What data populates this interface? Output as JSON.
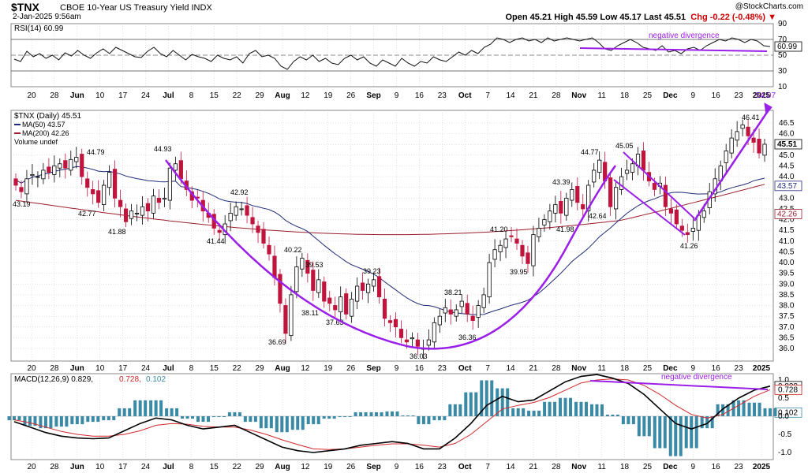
{
  "header": {
    "symbol": "$TNX",
    "description": "CBOE 10-Year US Treasury Yield INDX",
    "date": "2-Jan-2025 9:56am",
    "quote": "Open 45.21  High 45.59  Low 45.17  Last 45.51",
    "change": "Chg -0.22 (-0.48%)",
    "change_arrow": "▼",
    "logo": "@StockCharts.com"
  },
  "colors": {
    "up": "#000000",
    "down": "#c0143c",
    "ma50": "#1e2a78",
    "ma200": "#9a1e2e",
    "trend": "#9b1fe8",
    "macd": "#000000",
    "signal": "#d0282a",
    "histogram": "#3a8aa6",
    "grid": "#c8c8c8"
  },
  "chart_data": [
    {
      "type": "line",
      "panel": "rsi",
      "legend": "RSI(14) 60.99",
      "y_ticks": [
        "90",
        "70",
        "60.99",
        "50",
        "30",
        "10"
      ],
      "levels": [
        70,
        50,
        30
      ],
      "last": 60.99,
      "annotation": "negative divergence",
      "x_ticks": [
        "20",
        "28",
        "Jun",
        "10",
        "17",
        "24",
        "Jul",
        "8",
        "15",
        "22",
        "29",
        "Aug",
        "12",
        "19",
        "26",
        "Sep",
        "9",
        "16",
        "23",
        "Oct",
        "7",
        "14",
        "21",
        "28",
        "Nov",
        "11",
        "18",
        "25",
        "Dec",
        "9",
        "16",
        "23",
        "2025"
      ],
      "series": [
        {
          "values": [
            45,
            42,
            55,
            48,
            52,
            46,
            50,
            44,
            53,
            49,
            56,
            50,
            46,
            53,
            58,
            52,
            60,
            56,
            52,
            48,
            47,
            55,
            60,
            52,
            48,
            56,
            50,
            44,
            51,
            48,
            46,
            42,
            50,
            46,
            44,
            48,
            40,
            52,
            56,
            48,
            50,
            46,
            36,
            32,
            42,
            48,
            44,
            50,
            42,
            46,
            40,
            38,
            46,
            50,
            44,
            48,
            40,
            36,
            44,
            40,
            36,
            46,
            40,
            36,
            42,
            40,
            48,
            44,
            42,
            48,
            54,
            50,
            56,
            52,
            60,
            64,
            72,
            70,
            66,
            70,
            72,
            68,
            70,
            66,
            72,
            68,
            70,
            72,
            70,
            68,
            70,
            72,
            66,
            58,
            56,
            62,
            66,
            70,
            66,
            60,
            58,
            56,
            62,
            54,
            56,
            52,
            58,
            60,
            56,
            62,
            66,
            70,
            68,
            72,
            70,
            66,
            70,
            68,
            62,
            61
          ]
        }
      ]
    },
    {
      "type": "candlestick",
      "panel": "price",
      "legend": [
        "$TNX (Daily) 45.51",
        "MA(50) 43.57",
        "MA(200) 42.26",
        "Volume undef"
      ],
      "y_ticks": [
        "46.5",
        "46.0",
        "45.5",
        "45.0",
        "44.5",
        "44.0",
        "43.5",
        "43.0",
        "42.5",
        "42.0",
        "41.5",
        "41.0",
        "40.5",
        "40.0",
        "39.5",
        "39.0",
        "38.5",
        "38.0",
        "37.5",
        "37.0",
        "36.5",
        "36.0"
      ],
      "last_labels": [
        "45.51",
        "43.57",
        "42.26"
      ],
      "x_ticks": [
        "20",
        "28",
        "Jun",
        "10",
        "17",
        "24",
        "Jul",
        "8",
        "15",
        "22",
        "29",
        "Aug",
        "12",
        "19",
        "26",
        "Sep",
        "9",
        "16",
        "23",
        "Oct",
        "7",
        "14",
        "21",
        "28",
        "Nov",
        "11",
        "18",
        "25",
        "Dec",
        "9",
        "16",
        "23",
        "2025"
      ],
      "closes": [
        43.6,
        43.3,
        43.9,
        44.1,
        44.0,
        44.3,
        44.2,
        44.5,
        44.6,
        44.4,
        44.8,
        44.9,
        44.0,
        43.5,
        43.2,
        42.8,
        43.6,
        44.2,
        43.0,
        42.6,
        41.9,
        42.4,
        42.3,
        42.6,
        42.4,
        43.1,
        42.8,
        43.0,
        44.4,
        44.6,
        43.9,
        43.4,
        42.9,
        43.0,
        42.4,
        42.1,
        41.6,
        41.4,
        41.8,
        42.3,
        42.6,
        42.5,
        42.2,
        41.8,
        41.4,
        40.9,
        40.4,
        39.3,
        38.1,
        36.7,
        38.5,
        39.8,
        40.2,
        39.5,
        38.7,
        39.2,
        38.2,
        38.1,
        37.8,
        38.4,
        37.6,
        38.3,
        38.9,
        38.7,
        39.0,
        39.2,
        38.4,
        37.4,
        37.2,
        37.0,
        36.5,
        36.3,
        36.5,
        36.1,
        36.0,
        36.4,
        37.2,
        37.5,
        37.9,
        37.6,
        37.8,
        38.2,
        37.6,
        37.3,
        38.0,
        38.5,
        40.0,
        40.6,
        40.8,
        41.1,
        41.2,
        40.9,
        40.3,
        39.95,
        41.3,
        41.6,
        42.0,
        42.4,
        42.7,
        42.3,
        43.0,
        43.4,
        42.8,
        42.5,
        43.6,
        44.3,
        44.77,
        43.8,
        42.6,
        43.5,
        44.0,
        44.3,
        44.6,
        45.05,
        44.3,
        43.8,
        43.4,
        43.7,
        42.6,
        42.3,
        41.8,
        41.5,
        41.3,
        41.6,
        42.2,
        42.4,
        43.3,
        43.9,
        44.5,
        45.2,
        45.8,
        46.1,
        46.41,
        45.9,
        45.6,
        45.1,
        45.51
      ],
      "labels": [
        {
          "text": "43.19",
          "value": 43.19
        },
        {
          "text": "44.79",
          "value": 44.79
        },
        {
          "text": "42.77",
          "value": 42.77
        },
        {
          "text": "41.88",
          "value": 41.88
        },
        {
          "text": "44.93",
          "value": 44.93
        },
        {
          "text": "41.44",
          "value": 41.44
        },
        {
          "text": "42.92",
          "value": 42.92
        },
        {
          "text": "40.22",
          "value": 40.22
        },
        {
          "text": "39.53",
          "value": 39.53
        },
        {
          "text": "38.11",
          "value": 38.11
        },
        {
          "text": "37.63",
          "value": 37.63
        },
        {
          "text": "36.69",
          "value": 36.69
        },
        {
          "text": "39.23",
          "value": 39.23
        },
        {
          "text": "36.03",
          "value": 36.03
        },
        {
          "text": "36.36",
          "value": 36.36
        },
        {
          "text": "38.21",
          "value": 38.21
        },
        {
          "text": "41.20",
          "value": 41.2
        },
        {
          "text": "39.95",
          "value": 39.95
        },
        {
          "text": "43.39",
          "value": 43.39
        },
        {
          "text": "41.98",
          "value": 41.98
        },
        {
          "text": "44.77",
          "value": 44.77
        },
        {
          "text": "42.64",
          "value": 42.64
        },
        {
          "text": "45.05",
          "value": 45.05
        },
        {
          "text": "41.26",
          "value": 41.26
        },
        {
          "text": "46.41",
          "value": 46.41
        },
        {
          "text": "54.07",
          "value": 54.07
        }
      ]
    },
    {
      "type": "line",
      "panel": "macd",
      "legend": [
        "MACD(12,26,9) 0.829,",
        "0.728,",
        "0.102"
      ],
      "y_ticks": [
        "1.0",
        "0.829",
        "0.728",
        "0.5",
        "0.102",
        "0.0",
        "-0.5",
        "-1.0"
      ],
      "annotation": "negative divergence",
      "x_ticks": [
        "20",
        "28",
        "Jun",
        "10",
        "17",
        "24",
        "Jul",
        "8",
        "15",
        "22",
        "29",
        "Aug",
        "12",
        "19",
        "26",
        "Sep",
        "9",
        "16",
        "23",
        "Oct",
        "7",
        "14",
        "21",
        "28",
        "Nov",
        "11",
        "18",
        "25",
        "Dec",
        "9",
        "16",
        "23",
        "2025"
      ],
      "macd": [
        -0.15,
        -0.3,
        -0.45,
        -0.55,
        -0.6,
        -0.62,
        -0.6,
        -0.4,
        -0.2,
        -0.05,
        -0.1,
        -0.25,
        -0.35,
        -0.3,
        -0.25,
        -0.45,
        -0.65,
        -0.85,
        -0.95,
        -1.0,
        -0.95,
        -0.9,
        -0.8,
        -0.75,
        -0.7,
        -0.75,
        -0.9,
        -0.9,
        -0.6,
        -0.2,
        0.3,
        0.55,
        0.4,
        0.45,
        0.7,
        0.95,
        1.1,
        1.15,
        1.05,
        0.9,
        0.6,
        0.2,
        -0.2,
        -0.35,
        -0.2,
        0.2,
        0.5,
        0.72,
        0.83
      ],
      "signal": [
        -0.1,
        -0.18,
        -0.3,
        -0.42,
        -0.5,
        -0.55,
        -0.55,
        -0.5,
        -0.4,
        -0.25,
        -0.2,
        -0.22,
        -0.28,
        -0.3,
        -0.3,
        -0.38,
        -0.5,
        -0.65,
        -0.78,
        -0.9,
        -0.92,
        -0.9,
        -0.85,
        -0.8,
        -0.76,
        -0.76,
        -0.8,
        -0.85,
        -0.75,
        -0.5,
        -0.15,
        0.2,
        0.3,
        0.38,
        0.52,
        0.72,
        0.92,
        1.0,
        1.03,
        1.0,
        0.85,
        0.6,
        0.3,
        0.05,
        -0.05,
        0.05,
        0.3,
        0.55,
        0.73
      ]
    }
  ],
  "trend_labels": {
    "target": "54.07"
  }
}
